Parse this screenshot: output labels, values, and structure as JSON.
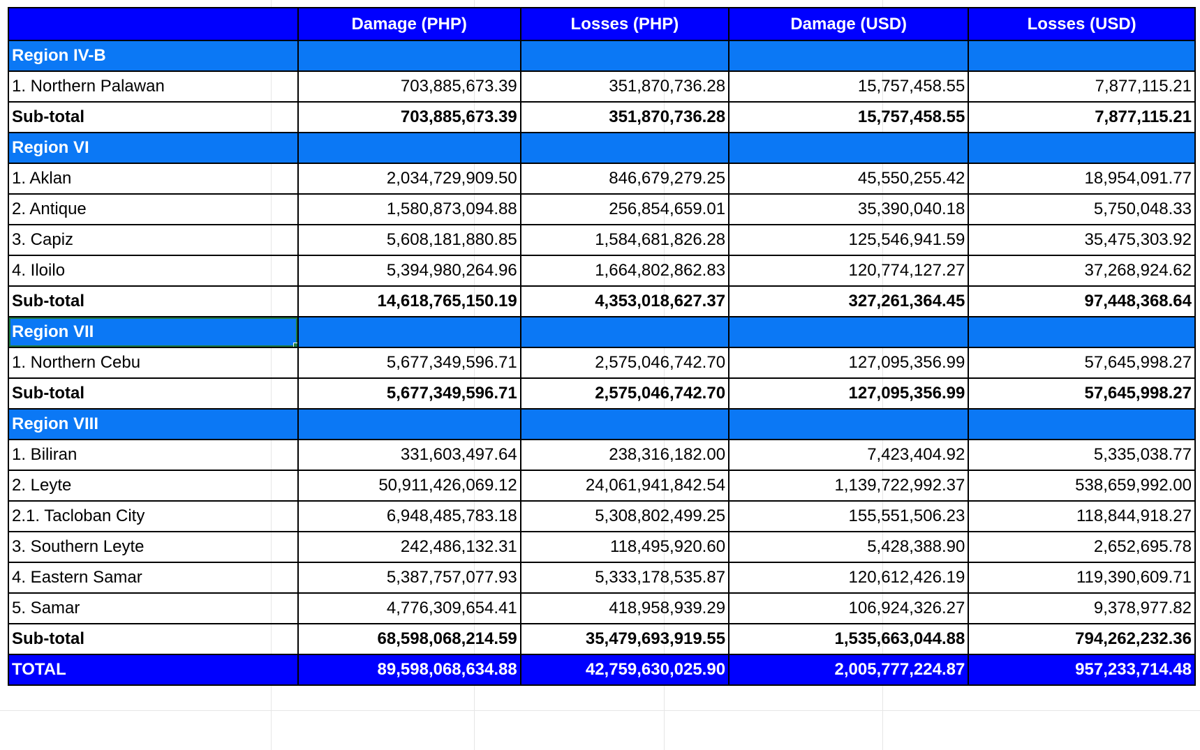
{
  "header": {
    "blank": "",
    "columns": [
      "Damage (PHP)",
      "Losses (PHP)",
      "Damage (USD)",
      "Losses (USD)"
    ]
  },
  "rows": [
    {
      "type": "region",
      "label": "Region IV-B",
      "values": [
        "",
        "",
        "",
        ""
      ]
    },
    {
      "type": "item",
      "label": "1. Northern Palawan",
      "values": [
        "703,885,673.39",
        "351,870,736.28",
        "15,757,458.55",
        "7,877,115.21"
      ]
    },
    {
      "type": "subtotal",
      "label": "Sub-total",
      "values": [
        "703,885,673.39",
        "351,870,736.28",
        "15,757,458.55",
        "7,877,115.21"
      ]
    },
    {
      "type": "region",
      "label": "Region VI",
      "values": [
        "",
        "",
        "",
        ""
      ]
    },
    {
      "type": "item",
      "label": "1. Aklan",
      "values": [
        "2,034,729,909.50",
        "846,679,279.25",
        "45,550,255.42",
        "18,954,091.77"
      ]
    },
    {
      "type": "item",
      "label": "2. Antique",
      "values": [
        "1,580,873,094.88",
        "256,854,659.01",
        "35,390,040.18",
        "5,750,048.33"
      ]
    },
    {
      "type": "item",
      "label": "3. Capiz",
      "values": [
        "5,608,181,880.85",
        "1,584,681,826.28",
        "125,546,941.59",
        "35,475,303.92"
      ]
    },
    {
      "type": "item",
      "label": "4. Iloilo",
      "values": [
        "5,394,980,264.96",
        "1,664,802,862.83",
        "120,774,127.27",
        "37,268,924.62"
      ]
    },
    {
      "type": "subtotal",
      "label": "Sub-total",
      "values": [
        "14,618,765,150.19",
        "4,353,018,627.37",
        "327,261,364.45",
        "97,448,368.64"
      ]
    },
    {
      "type": "region",
      "label": "Region VII",
      "values": [
        "",
        "",
        "",
        ""
      ],
      "selected": true
    },
    {
      "type": "item",
      "label": "1. Northern Cebu",
      "values": [
        "5,677,349,596.71",
        "2,575,046,742.70",
        "127,095,356.99",
        "57,645,998.27"
      ]
    },
    {
      "type": "subtotal",
      "label": "Sub-total",
      "values": [
        "5,677,349,596.71",
        "2,575,046,742.70",
        "127,095,356.99",
        "57,645,998.27"
      ]
    },
    {
      "type": "region",
      "label": "Region VIII",
      "values": [
        "",
        "",
        "",
        ""
      ]
    },
    {
      "type": "item",
      "label": "1. Biliran",
      "values": [
        "331,603,497.64",
        "238,316,182.00",
        "7,423,404.92",
        "5,335,038.77"
      ]
    },
    {
      "type": "item",
      "label": "2. Leyte",
      "values": [
        "50,911,426,069.12",
        "24,061,941,842.54",
        "1,139,722,992.37",
        "538,659,992.00"
      ]
    },
    {
      "type": "item",
      "label": "2.1. Tacloban City",
      "values": [
        "6,948,485,783.18",
        "5,308,802,499.25",
        "155,551,506.23",
        "118,844,918.27"
      ]
    },
    {
      "type": "item",
      "label": "3. Southern Leyte",
      "values": [
        "242,486,132.31",
        "118,495,920.60",
        "5,428,388.90",
        "2,652,695.78"
      ]
    },
    {
      "type": "item",
      "label": "4. Eastern Samar",
      "values": [
        "5,387,757,077.93",
        "5,333,178,535.87",
        "120,612,426.19",
        "119,390,609.71"
      ]
    },
    {
      "type": "item",
      "label": "5. Samar",
      "values": [
        "4,776,309,654.41",
        "418,958,939.29",
        "106,924,326.27",
        "9,378,977.82"
      ]
    },
    {
      "type": "subtotal",
      "label": "Sub-total",
      "values": [
        "68,598,068,214.59",
        "35,479,693,919.55",
        "1,535,663,044.88",
        "794,262,232.36"
      ]
    },
    {
      "type": "total",
      "label": "TOTAL",
      "values": [
        "89,598,068,634.88",
        "42,759,630,025.90",
        "2,005,777,224.87",
        "957,233,714.48"
      ]
    }
  ],
  "colors": {
    "header_bg": "#0000ff",
    "region_bg": "#0b78f5",
    "total_bg": "#0000ff",
    "selection": "#1e7b45"
  }
}
